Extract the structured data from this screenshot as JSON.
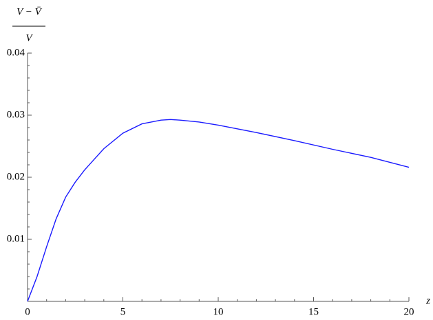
{
  "chart_data": {
    "type": "line",
    "ylabel_numerator": "V − V̄",
    "ylabel_denominator": "V",
    "xlabel": "z",
    "x": [
      0,
      0.5,
      1,
      1.5,
      2,
      2.5,
      3,
      4,
      5,
      6,
      7,
      7.5,
      8,
      9,
      10,
      12,
      14,
      16,
      18,
      20
    ],
    "values": [
      0,
      0.004,
      0.0088,
      0.0133,
      0.0168,
      0.0192,
      0.0212,
      0.0246,
      0.0271,
      0.0286,
      0.0292,
      0.0293,
      0.0292,
      0.0289,
      0.0284,
      0.0272,
      0.0259,
      0.0245,
      0.0232,
      0.0216
    ],
    "color": "#1a1aff",
    "xlim": [
      0,
      20
    ],
    "ylim": [
      0,
      0.04
    ],
    "xticks": [
      0,
      5,
      10,
      15,
      20
    ],
    "yticks": [
      0.01,
      0.02,
      0.03,
      0.04
    ],
    "xminorticks": [
      1,
      2,
      3,
      4,
      6,
      7,
      8,
      9,
      11,
      12,
      13,
      14,
      16,
      17,
      18,
      19
    ],
    "yminorticks": [
      0.002,
      0.004,
      0.006,
      0.008,
      0.012,
      0.014,
      0.016,
      0.018,
      0.022,
      0.024,
      0.026,
      0.028,
      0.032,
      0.034,
      0.036,
      0.038
    ]
  }
}
